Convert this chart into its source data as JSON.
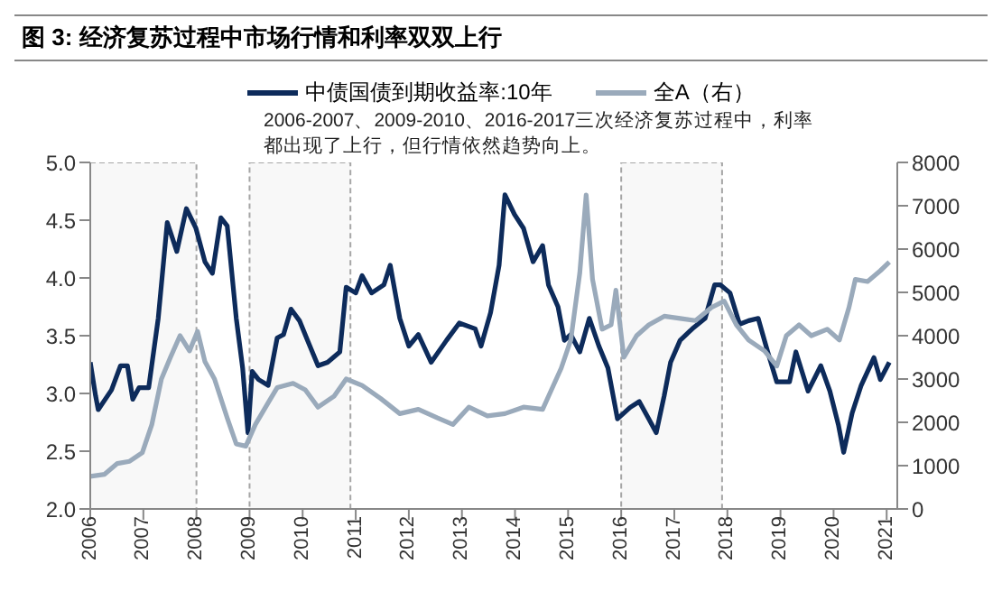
{
  "chart_data": {
    "type": "line",
    "title": "图 3: 经济复苏过程中市场行情和利率双双上行",
    "annotations": [
      "2006-2007、2009-2010、2016-2017三次经济复苏过程中，利率都出现了上行，但行情依然趋势向上。"
    ],
    "legend": "top",
    "grid": false,
    "marker": "none",
    "line_style": "solid",
    "xlim": [
      2006,
      2021.2
    ],
    "xticks": [
      2006,
      2007,
      2008,
      2009,
      2010,
      2011,
      2012,
      2013,
      2014,
      2015,
      2016,
      2017,
      2018,
      2019,
      2020,
      2021
    ],
    "ylim": [
      2,
      5
    ],
    "yticks": [
      {
        "value": 2,
        "label": "2.0"
      },
      {
        "value": 2.5,
        "label": "2.5"
      },
      {
        "value": 3,
        "label": "3.0"
      },
      {
        "value": 3.5,
        "label": "3.5"
      },
      {
        "value": 4,
        "label": "4.0"
      },
      {
        "value": 4.5,
        "label": "4.5"
      },
      {
        "value": 5,
        "label": "5.0"
      }
    ],
    "y2lim": [
      0,
      8000
    ],
    "y2ticks": [
      0,
      1000,
      2000,
      3000,
      4000,
      5000,
      6000,
      7000,
      8000
    ],
    "bands": [
      {
        "axis": "x",
        "from": 2006,
        "to": 2008,
        "color": "#a6a6a6"
      },
      {
        "axis": "x",
        "from": 2009,
        "to": 2010.9,
        "color": "#a6a6a6"
      },
      {
        "axis": "x",
        "from": 2016,
        "to": 2017.9,
        "color": "#a6a6a6"
      }
    ],
    "series": [
      {
        "name": "中债国债到期收益率:10年",
        "color": "#0d2b5b",
        "x": [
          2006,
          2006.1,
          2006.15,
          2006.4,
          2006.57,
          2006.7,
          2006.8,
          2006.92,
          2007.1,
          2007.28,
          2007.45,
          2007.63,
          2007.81,
          2007.99,
          2008.16,
          2008.3,
          2008.46,
          2008.58,
          2008.75,
          2008.87,
          2008.97,
          2009.05,
          2009.17,
          2009.35,
          2009.52,
          2009.64,
          2009.78,
          2009.94,
          2010.11,
          2010.29,
          2010.47,
          2010.7,
          2010.82,
          2011,
          2011.12,
          2011.3,
          2011.53,
          2011.65,
          2011.83,
          2012,
          2012.18,
          2012.42,
          2012.71,
          2012.95,
          2013.25,
          2013.36,
          2013.54,
          2013.7,
          2013.81,
          2013.99,
          2014.16,
          2014.34,
          2014.52,
          2014.63,
          2014.81,
          2014.93,
          2015.05,
          2015.22,
          2015.4,
          2015.58,
          2015.75,
          2015.93,
          2016.17,
          2016.34,
          2016.52,
          2016.66,
          2016.81,
          2016.93,
          2017.11,
          2017.34,
          2017.58,
          2017.76,
          2017.87,
          2018.05,
          2018.23,
          2018.4,
          2018.58,
          2018.76,
          2018.93,
          2019.17,
          2019.29,
          2019.52,
          2019.76,
          2019.93,
          2020.09,
          2020.19,
          2020.35,
          2020.52,
          2020.76,
          2020.88,
          2021.05
        ],
        "values": [
          3.27,
          2.98,
          2.86,
          3.03,
          3.24,
          3.24,
          2.95,
          3.05,
          3.05,
          3.65,
          4.48,
          4.23,
          4.6,
          4.43,
          4.14,
          4.04,
          4.52,
          4.45,
          3.65,
          3.22,
          2.66,
          3.19,
          3.12,
          3.07,
          3.48,
          3.51,
          3.73,
          3.63,
          3.44,
          3.24,
          3.27,
          3.36,
          3.92,
          3.87,
          4.02,
          3.87,
          3.94,
          4.11,
          3.65,
          3.41,
          3.51,
          3.27,
          3.46,
          3.61,
          3.56,
          3.41,
          3.7,
          4.11,
          4.72,
          4.55,
          4.43,
          4.14,
          4.28,
          3.94,
          3.75,
          3.46,
          3.51,
          3.36,
          3.65,
          3.41,
          3.22,
          2.78,
          2.88,
          2.93,
          2.78,
          2.66,
          2.98,
          3.27,
          3.46,
          3.56,
          3.65,
          3.94,
          3.94,
          3.87,
          3.6,
          3.63,
          3.65,
          3.36,
          3.1,
          3.1,
          3.36,
          3.02,
          3.24,
          3.02,
          2.73,
          2.49,
          2.83,
          3.07,
          3.31,
          3.12,
          3.27
        ]
      },
      {
        "name": "全A（右）",
        "color": "#9aaabb",
        "axis": "y2",
        "x": [
          2006,
          2006.27,
          2006.51,
          2006.74,
          2006.98,
          2007.16,
          2007.34,
          2007.51,
          2007.69,
          2007.87,
          2008.02,
          2008.16,
          2008.34,
          2008.58,
          2008.75,
          2008.93,
          2009.11,
          2009.35,
          2009.52,
          2009.82,
          2010.05,
          2010.29,
          2010.59,
          2010.82,
          2011.12,
          2011.47,
          2011.83,
          2012.18,
          2012.54,
          2012.83,
          2013.13,
          2013.48,
          2013.81,
          2014.16,
          2014.52,
          2014.63,
          2014.87,
          2015.05,
          2015.22,
          2015.34,
          2015.46,
          2015.64,
          2015.81,
          2015.9,
          2016.05,
          2016.29,
          2016.52,
          2016.81,
          2017.11,
          2017.4,
          2017.7,
          2017.94,
          2018.17,
          2018.4,
          2018.7,
          2018.93,
          2019.11,
          2019.35,
          2019.58,
          2019.88,
          2020.11,
          2020.29,
          2020.41,
          2020.64,
          2020.88,
          2021.05
        ],
        "values": [
          750,
          800,
          1050,
          1100,
          1300,
          1950,
          3000,
          3500,
          4000,
          3650,
          4100,
          3400,
          3000,
          2100,
          1500,
          1450,
          1950,
          2450,
          2800,
          2900,
          2750,
          2350,
          2600,
          3000,
          2850,
          2550,
          2200,
          2300,
          2100,
          1950,
          2350,
          2150,
          2200,
          2350,
          2300,
          2600,
          3250,
          3900,
          5450,
          7250,
          5300,
          4150,
          4250,
          5050,
          3500,
          4000,
          4250,
          4450,
          4400,
          4350,
          4650,
          4800,
          4250,
          3900,
          3650,
          3300,
          4000,
          4250,
          4000,
          4150,
          3900,
          4650,
          5300,
          5250,
          5500,
          5700
        ]
      }
    ]
  }
}
